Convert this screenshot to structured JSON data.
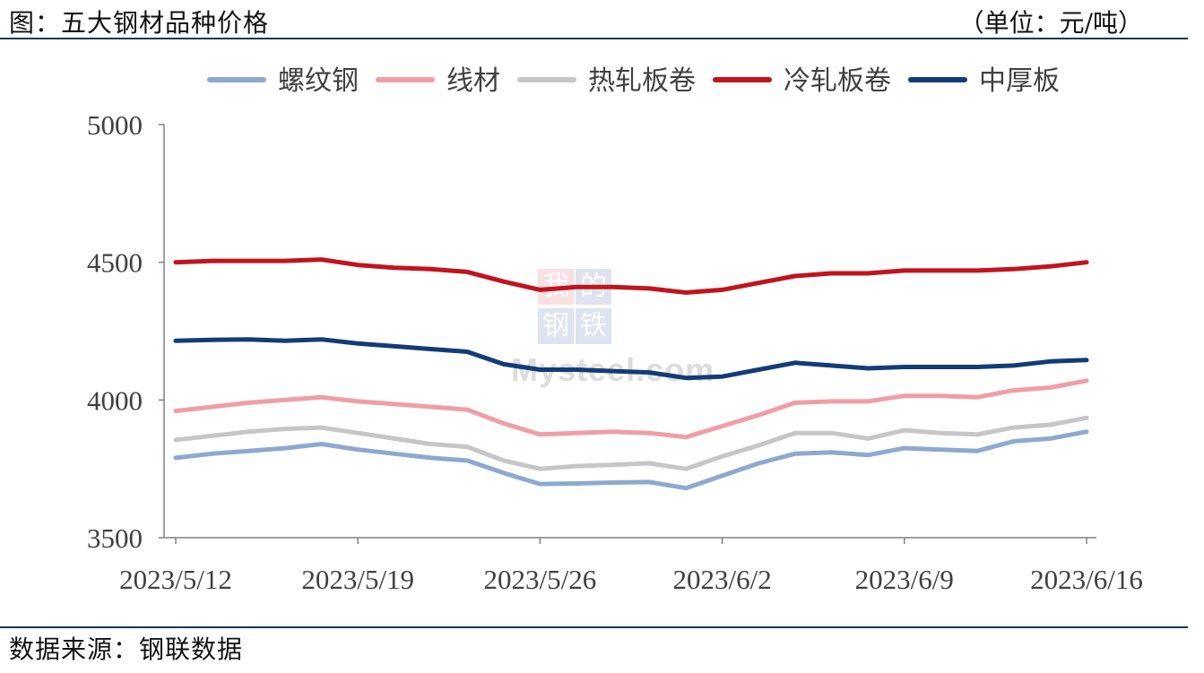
{
  "header": {
    "title": "图：五大钢材品种价格",
    "unit": "（单位：元/吨）"
  },
  "footer": {
    "source": "数据来源：钢联数据"
  },
  "watermark": {
    "chars": [
      "我",
      "的",
      "钢",
      "铁"
    ],
    "text": "Mysteel.com"
  },
  "colors": {
    "rebar": "#8ea9cf",
    "wire": "#ef9ea5",
    "hot_rolled": "#c6c6c6",
    "cold_rolled": "#c0141e",
    "plate": "#133b78",
    "axis": "#808080",
    "frame": "#17365d"
  },
  "chart_data": {
    "type": "line",
    "title": "图：五大钢材品种价格",
    "ylabel": "",
    "xlabel": "",
    "unit": "元/吨",
    "ylim": [
      3500,
      5000
    ],
    "yticks": [
      3500,
      4000,
      4500,
      5000
    ],
    "xtick_labels": [
      "2023/5/12",
      "2023/5/19",
      "2023/5/26",
      "2023/6/2",
      "2023/6/9",
      "2023/6/16"
    ],
    "x": [
      "2023/5/12",
      "2023/5/15",
      "2023/5/16",
      "2023/5/17",
      "2023/5/18",
      "2023/5/19",
      "2023/5/22",
      "2023/5/23",
      "2023/5/24",
      "2023/5/25",
      "2023/5/26",
      "2023/5/29",
      "2023/5/30",
      "2023/5/31",
      "2023/6/1",
      "2023/6/2",
      "2023/6/5",
      "2023/6/6",
      "2023/6/7",
      "2023/6/8",
      "2023/6/9",
      "2023/6/12",
      "2023/6/13",
      "2023/6/14",
      "2023/6/15",
      "2023/6/16"
    ],
    "legend_position": "top",
    "grid": false,
    "series": [
      {
        "name": "螺纹钢",
        "color_key": "rebar",
        "values": [
          3790,
          3805,
          3815,
          3825,
          3840,
          3820,
          3805,
          3790,
          3780,
          3735,
          3695,
          3697,
          3700,
          3702,
          3680,
          3725,
          3770,
          3805,
          3810,
          3800,
          3825,
          3820,
          3815,
          3850,
          3860,
          3885
        ]
      },
      {
        "name": "线材",
        "color_key": "wire",
        "values": [
          3960,
          3975,
          3990,
          4000,
          4010,
          3995,
          3985,
          3975,
          3965,
          3915,
          3875,
          3880,
          3885,
          3880,
          3865,
          3905,
          3945,
          3990,
          3995,
          3995,
          4015,
          4015,
          4010,
          4035,
          4045,
          4070
        ]
      },
      {
        "name": "热轧板卷",
        "color_key": "hot_rolled",
        "values": [
          3855,
          3870,
          3885,
          3895,
          3900,
          3880,
          3860,
          3840,
          3830,
          3780,
          3750,
          3760,
          3765,
          3770,
          3750,
          3795,
          3835,
          3880,
          3880,
          3860,
          3890,
          3880,
          3875,
          3900,
          3910,
          3935
        ]
      },
      {
        "name": "冷轧板卷",
        "color_key": "cold_rolled",
        "values": [
          4500,
          4505,
          4505,
          4505,
          4510,
          4490,
          4480,
          4475,
          4465,
          4430,
          4400,
          4410,
          4410,
          4405,
          4390,
          4400,
          4425,
          4450,
          4460,
          4460,
          4470,
          4470,
          4470,
          4475,
          4485,
          4500
        ]
      },
      {
        "name": "中厚板",
        "color_key": "plate",
        "values": [
          4215,
          4218,
          4220,
          4215,
          4220,
          4205,
          4195,
          4185,
          4175,
          4130,
          4110,
          4110,
          4105,
          4100,
          4080,
          4085,
          4110,
          4135,
          4125,
          4115,
          4120,
          4120,
          4120,
          4125,
          4140,
          4145
        ]
      }
    ]
  }
}
